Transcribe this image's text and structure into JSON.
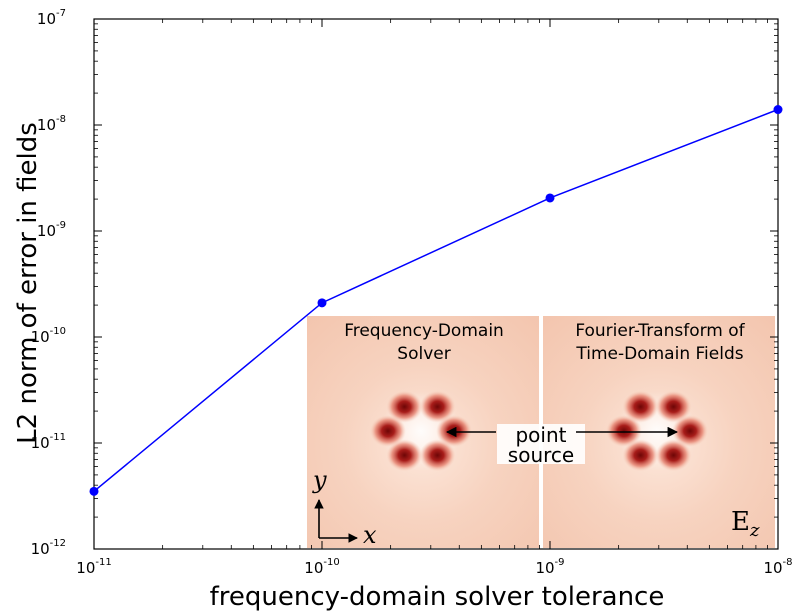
{
  "chart_data": {
    "type": "line",
    "x_scale": "log",
    "y_scale": "log",
    "xlim": [
      1e-11,
      1e-08
    ],
    "ylim": [
      1e-12,
      1e-07
    ],
    "x": [
      1e-11,
      1e-10,
      1e-09,
      1e-08
    ],
    "series": [
      {
        "values": [
          3.5e-12,
          2.1e-10,
          2.05e-09,
          1.4e-08
        ],
        "color": "#0000ff"
      }
    ],
    "xlabel": "frequency-domain solver tolerance",
    "ylabel": "L2 norm of error in fields",
    "x_ticks": [
      {
        "base": "10",
        "exp": "-11"
      },
      {
        "base": "10",
        "exp": "-10"
      },
      {
        "base": "10",
        "exp": "-9"
      },
      {
        "base": "10",
        "exp": "-8"
      }
    ],
    "y_ticks": [
      {
        "base": "10",
        "exp": "-12"
      },
      {
        "base": "10",
        "exp": "-11"
      },
      {
        "base": "10",
        "exp": "-10"
      },
      {
        "base": "10",
        "exp": "-9"
      },
      {
        "base": "10",
        "exp": "-8"
      },
      {
        "base": "10",
        "exp": "-7"
      }
    ],
    "grid": false,
    "legend": "none"
  },
  "inset": {
    "left_title": [
      "Frequency-Domain",
      "Solver"
    ],
    "right_title": [
      "Fourier-Transform of",
      "Time-Domain Fields"
    ],
    "annotation": [
      "point",
      "source"
    ],
    "axis_y": "y",
    "axis_x": "x",
    "field_label_main": "E",
    "field_label_sub": "z",
    "colors": {
      "background": "#f6cdb8",
      "lobe_dark": "#7a0a0a",
      "lobe_mid": "#d2483c"
    }
  }
}
